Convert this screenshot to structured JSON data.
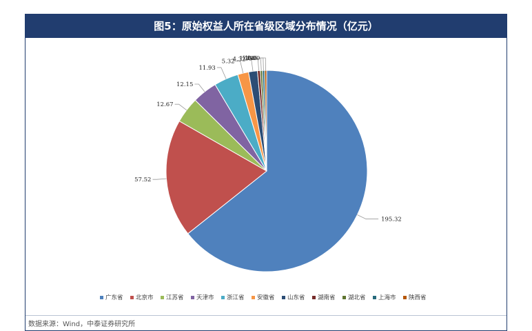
{
  "header": {
    "title": "图5：原始权益人所在省级区域分布情况（亿元）"
  },
  "footer": {
    "source": "数据来源：Wind，中泰证券研究所"
  },
  "chart_data": {
    "type": "pie",
    "title": "图5：原始权益人所在省级区域分布情况（亿元）",
    "unit": "亿元",
    "legend_position": "bottom",
    "categories": [
      "广东省",
      "北京市",
      "江苏省",
      "天津市",
      "浙江省",
      "安徽省",
      "山东省",
      "湖南省",
      "湖北省",
      "上海市",
      "陕西省"
    ],
    "values": [
      195.32,
      57.52,
      12.67,
      12.15,
      11.93,
      5.32,
      4.32,
      1.35,
      1.06,
      1.05,
      1.0
    ],
    "colors": [
      "#4f81bd",
      "#c0504d",
      "#9bbb59",
      "#8064a2",
      "#4bacc6",
      "#f79646",
      "#2c4d75",
      "#772c2a",
      "#5f7530",
      "#276a7c",
      "#b65708"
    ]
  }
}
